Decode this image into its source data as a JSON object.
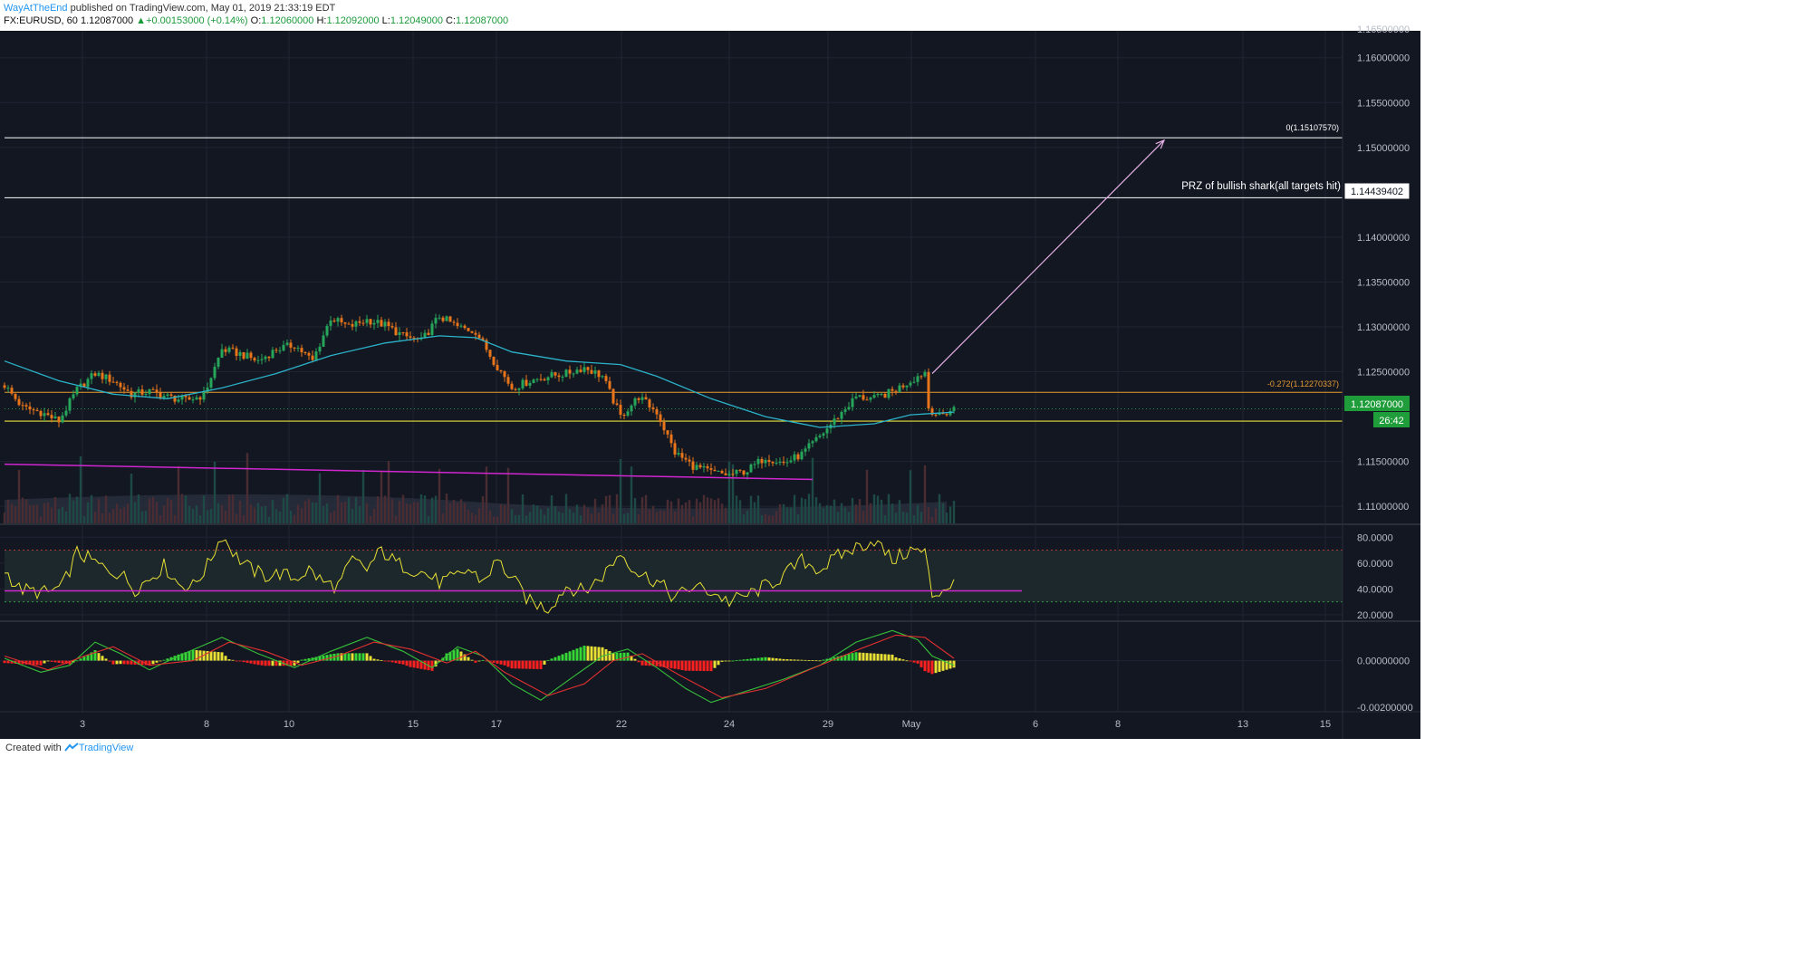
{
  "header": {
    "author": "WayAtTheEnd",
    "published_text": "published on TradingView.com, May 01, 2019 21:33:19 EDT",
    "symbol": "FX:EURUSD, 60",
    "last": "1.12087000",
    "change_arrow": "▲",
    "change": "+0.00153000 (+0.14%)",
    "o_label": "O:",
    "o_value": "1.12060000",
    "h_label": "H:",
    "h_value": "1.12092000",
    "l_label": "L:",
    "l_value": "1.12049000",
    "c_label": "C:",
    "c_value": "1.12087000"
  },
  "footer": {
    "created_with": "Created with",
    "brand": "TradingView",
    "logo_icon": "tradingview-logo-icon"
  },
  "colors": {
    "background": "#131722",
    "grid": "#1f2433",
    "up": "#26a65b",
    "down": "#e8751a",
    "ma": "#2bb3c9",
    "rsi": "#e8e035",
    "magenta": "#d026d0",
    "fib": "#e89a30",
    "level": "#ffffff",
    "arrow": "#e6b0e6",
    "price_badge": "#1f9d3a"
  },
  "chart_data": [
    {
      "type": "candlestick",
      "name": "EURUSD 60 price",
      "ylim": [
        1.108,
        1.163
      ],
      "x_tick_labels": [
        "3",
        "8",
        "10",
        "15",
        "17",
        "22",
        "24",
        "29",
        "May",
        "6",
        "8",
        "13",
        "15"
      ],
      "y_tick_labels": [
        "1.16000000",
        "1.15500000",
        "1.15000000",
        "1.14000000",
        "1.13500000",
        "1.13000000",
        "1.12500000",
        "1.11500000",
        "1.11000000"
      ],
      "y_top_partial_label": "1.16500000",
      "close_path": [
        [
          0,
          1.1235
        ],
        [
          5,
          1.121
        ],
        [
          10,
          1.1205
        ],
        [
          15,
          1.1195
        ],
        [
          20,
          1.123
        ],
        [
          25,
          1.1248
        ],
        [
          30,
          1.124
        ],
        [
          35,
          1.1225
        ],
        [
          40,
          1.1228
        ],
        [
          45,
          1.1222
        ],
        [
          50,
          1.1218
        ],
        [
          55,
          1.1224
        ],
        [
          60,
          1.1275
        ],
        [
          65,
          1.127
        ],
        [
          70,
          1.1262
        ],
        [
          75,
          1.1275
        ],
        [
          80,
          1.128
        ],
        [
          85,
          1.1262
        ],
        [
          90,
          1.131
        ],
        [
          95,
          1.13
        ],
        [
          100,
          1.1308
        ],
        [
          105,
          1.1302
        ],
        [
          110,
          1.129
        ],
        [
          115,
          1.1284
        ],
        [
          120,
          1.1312
        ],
        [
          125,
          1.13
        ],
        [
          130,
          1.1295
        ],
        [
          135,
          1.1262
        ],
        [
          140,
          1.1232
        ],
        [
          145,
          1.124
        ],
        [
          150,
          1.1245
        ],
        [
          155,
          1.1248
        ],
        [
          160,
          1.1255
        ],
        [
          165,
          1.1245
        ],
        [
          170,
          1.12
        ],
        [
          175,
          1.1222
        ],
        [
          180,
          1.1205
        ],
        [
          185,
          1.116
        ],
        [
          190,
          1.1145
        ],
        [
          195,
          1.1138
        ],
        [
          200,
          1.1135
        ],
        [
          205,
          1.114
        ],
        [
          210,
          1.1155
        ],
        [
          215,
          1.1148
        ],
        [
          220,
          1.1158
        ],
        [
          225,
          1.1178
        ],
        [
          230,
          1.12
        ],
        [
          235,
          1.1222
        ],
        [
          240,
          1.122
        ],
        [
          245,
          1.1228
        ],
        [
          250,
          1.124
        ],
        [
          254,
          1.125
        ],
        [
          255,
          1.121
        ],
        [
          258,
          1.12
        ],
        [
          262,
          1.1209
        ]
      ],
      "ma_path": [
        [
          0,
          1.1262
        ],
        [
          15,
          1.124
        ],
        [
          30,
          1.1225
        ],
        [
          45,
          1.122
        ],
        [
          60,
          1.1232
        ],
        [
          75,
          1.1248
        ],
        [
          90,
          1.1268
        ],
        [
          105,
          1.1282
        ],
        [
          120,
          1.129
        ],
        [
          130,
          1.1288
        ],
        [
          140,
          1.1272
        ],
        [
          155,
          1.1262
        ],
        [
          170,
          1.1258
        ],
        [
          180,
          1.1245
        ],
        [
          195,
          1.122
        ],
        [
          210,
          1.12
        ],
        [
          225,
          1.1188
        ],
        [
          240,
          1.1192
        ],
        [
          250,
          1.1202
        ],
        [
          262,
          1.1205
        ]
      ],
      "annotations": {
        "fib_label": "-0.272(1.12270337)",
        "fib_value": 1.12270337,
        "fib_zero_label": "0(1.15107570)",
        "fib_zero_value": 1.1510757,
        "prz_label": "PRZ of bullish shark(all targets hit)",
        "prz_value": 1.14439402,
        "prz_badge": "1.14439402",
        "price_badge": "1.12087000",
        "price_value": 1.12087,
        "countdown": "26:42",
        "support_value": 1.1195,
        "trendline": [
          [
            0,
            1.1147
          ],
          [
            223,
            1.113
          ]
        ],
        "arrow": [
          [
            256,
            1.1248
          ],
          [
            320,
            1.1508
          ]
        ]
      }
    },
    {
      "type": "line",
      "name": "RSI",
      "ylim": [
        15,
        90
      ],
      "y_tick_labels": [
        "80.0000",
        "60.0000",
        "40.0000",
        "20.0000"
      ],
      "band": [
        30,
        70
      ],
      "trendline_value": 38.5,
      "path": [
        [
          0,
          55
        ],
        [
          4,
          40
        ],
        [
          8,
          38
        ],
        [
          12,
          37
        ],
        [
          16,
          42
        ],
        [
          20,
          68
        ],
        [
          24,
          62
        ],
        [
          28,
          55
        ],
        [
          32,
          52
        ],
        [
          36,
          40
        ],
        [
          40,
          48
        ],
        [
          44,
          58
        ],
        [
          48,
          44
        ],
        [
          52,
          42
        ],
        [
          56,
          58
        ],
        [
          60,
          82
        ],
        [
          64,
          65
        ],
        [
          68,
          55
        ],
        [
          72,
          50
        ],
        [
          76,
          52
        ],
        [
          80,
          48
        ],
        [
          84,
          55
        ],
        [
          88,
          45
        ],
        [
          92,
          42
        ],
        [
          96,
          62
        ],
        [
          100,
          55
        ],
        [
          104,
          70
        ],
        [
          108,
          60
        ],
        [
          112,
          56
        ],
        [
          116,
          52
        ],
        [
          120,
          45
        ],
        [
          124,
          48
        ],
        [
          128,
          55
        ],
        [
          132,
          46
        ],
        [
          136,
          62
        ],
        [
          140,
          48
        ],
        [
          145,
          30
        ],
        [
          150,
          25
        ],
        [
          155,
          42
        ],
        [
          160,
          38
        ],
        [
          165,
          50
        ],
        [
          170,
          68
        ],
        [
          175,
          52
        ],
        [
          180,
          46
        ],
        [
          185,
          33
        ],
        [
          190,
          42
        ],
        [
          195,
          38
        ],
        [
          200,
          30
        ],
        [
          205,
          35
        ],
        [
          210,
          42
        ],
        [
          215,
          50
        ],
        [
          220,
          62
        ],
        [
          225,
          55
        ],
        [
          230,
          65
        ],
        [
          235,
          72
        ],
        [
          240,
          78
        ],
        [
          245,
          62
        ],
        [
          250,
          70
        ],
        [
          254,
          68
        ],
        [
          256,
          35
        ],
        [
          258,
          38
        ],
        [
          262,
          45
        ]
      ]
    },
    {
      "type": "macd",
      "name": "MACD",
      "ylim": [
        -0.0022,
        0.0017
      ],
      "y_tick_labels": [
        "0.00000000",
        "-0.00200000"
      ],
      "macd_path": [
        [
          0,
          0.0001
        ],
        [
          10,
          -0.0005
        ],
        [
          18,
          -0.0002
        ],
        [
          25,
          0.0008
        ],
        [
          32,
          0.0003
        ],
        [
          40,
          -0.0004
        ],
        [
          48,
          0.0002
        ],
        [
          60,
          0.001
        ],
        [
          70,
          0.0003
        ],
        [
          80,
          -0.0003
        ],
        [
          90,
          0.0004
        ],
        [
          100,
          0.001
        ],
        [
          110,
          0.0004
        ],
        [
          118,
          -0.0003
        ],
        [
          125,
          0.0006
        ],
        [
          132,
          0.0002
        ],
        [
          140,
          -0.001
        ],
        [
          148,
          -0.0017
        ],
        [
          156,
          -0.0008
        ],
        [
          165,
          0.0002
        ],
        [
          172,
          0.0005
        ],
        [
          180,
          -0.0003
        ],
        [
          188,
          -0.0012
        ],
        [
          195,
          -0.0018
        ],
        [
          205,
          -0.0013
        ],
        [
          215,
          -0.0008
        ],
        [
          225,
          -0.0002
        ],
        [
          235,
          0.0008
        ],
        [
          245,
          0.0013
        ],
        [
          252,
          0.0009
        ],
        [
          256,
          0.0002
        ],
        [
          262,
          -0.0002
        ]
      ],
      "signal_path": [
        [
          0,
          0.0002
        ],
        [
          12,
          -0.0004
        ],
        [
          22,
          0.0002
        ],
        [
          30,
          0.0006
        ],
        [
          40,
          -0.0002
        ],
        [
          52,
          0.0
        ],
        [
          62,
          0.0008
        ],
        [
          72,
          0.0004
        ],
        [
          82,
          -0.0002
        ],
        [
          92,
          0.0002
        ],
        [
          102,
          0.0008
        ],
        [
          112,
          0.0005
        ],
        [
          122,
          -0.0001
        ],
        [
          130,
          0.0004
        ],
        [
          138,
          -0.0005
        ],
        [
          150,
          -0.0015
        ],
        [
          160,
          -0.001
        ],
        [
          168,
          0.0
        ],
        [
          176,
          0.0003
        ],
        [
          186,
          -0.0006
        ],
        [
          198,
          -0.0016
        ],
        [
          210,
          -0.0012
        ],
        [
          222,
          -0.0004
        ],
        [
          236,
          0.0005
        ],
        [
          246,
          0.0011
        ],
        [
          254,
          0.001
        ],
        [
          262,
          0.0001
        ]
      ]
    }
  ]
}
